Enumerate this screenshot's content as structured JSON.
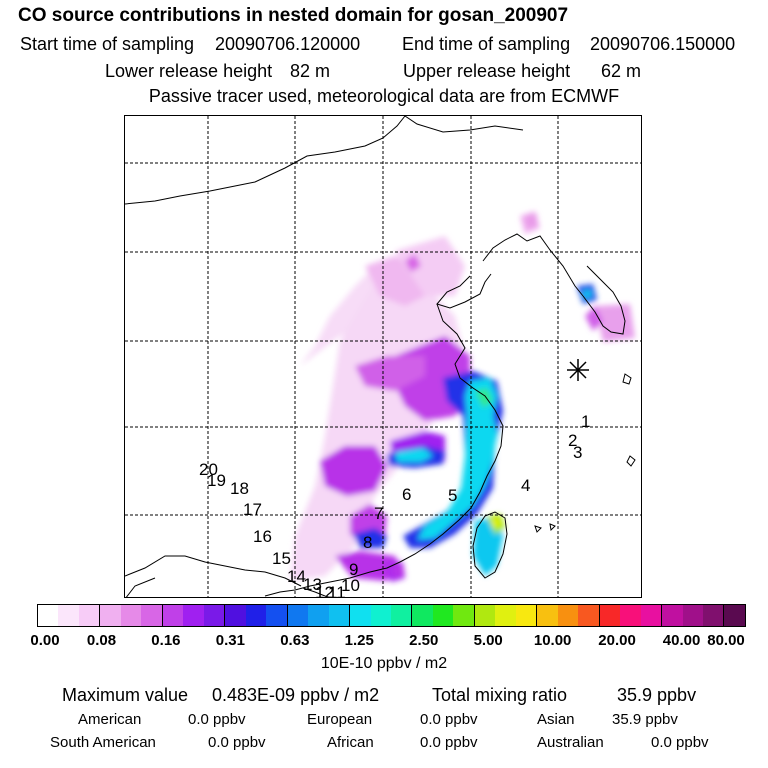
{
  "header": {
    "title": "CO  source contributions in nested domain for gosan_200907",
    "start_label": "Start time of sampling",
    "start_value": "20090706.120000",
    "end_label": "End time of sampling",
    "end_value": "20090706.150000",
    "lower_label": "Lower release height",
    "lower_value": "82 m",
    "upper_label": "Upper release height",
    "upper_value": "62 m",
    "tracer_note": "Passive tracer used, meteorological data are from ECMWF"
  },
  "map": {
    "markers": [
      "1",
      "2",
      "3",
      "4",
      "5",
      "6",
      "7",
      "8",
      "9",
      "10",
      "11",
      "12",
      "13",
      "14",
      "15",
      "16",
      "17",
      "18",
      "19",
      "20"
    ],
    "colors": {
      "coast": "#000000",
      "grid": "#000000",
      "lowest": "#f7dcf7"
    }
  },
  "legend": {
    "colors": [
      "#ffffff",
      "#fbe6fb",
      "#f7ccf7",
      "#f0b0f0",
      "#e68ae8",
      "#d866e6",
      "#c040e8",
      "#a020f0",
      "#7a1ae8",
      "#5010e0",
      "#2020e8",
      "#1450f0",
      "#1078f0",
      "#10a0f0",
      "#10c0f0",
      "#10e0f0",
      "#10f0d0",
      "#10f0a0",
      "#10e860",
      "#20e820",
      "#70e810",
      "#b0e810",
      "#e0f010",
      "#f8e810",
      "#f8c010",
      "#f89010",
      "#f85820",
      "#f82828",
      "#f8107a",
      "#e810a0",
      "#c010a0",
      "#a0108a",
      "#80106e",
      "#5a0a50"
    ],
    "labels": [
      "0.00",
      "0.08",
      "0.16",
      "0.31",
      "0.63",
      "1.25",
      "2.50",
      "5.00",
      "10.00",
      "20.00",
      "40.00",
      "80.00"
    ],
    "units": "10E-10 ppbv / m2"
  },
  "summary": {
    "max_label": "Maximum value",
    "max_value": "0.483E-09 ppbv / m2",
    "total_label": "Total mixing ratio",
    "total_value": "35.9 ppbv"
  },
  "contributions": [
    {
      "label": "American",
      "value": "0.0 ppbv"
    },
    {
      "label": "European",
      "value": "0.0 ppbv"
    },
    {
      "label": "Asian",
      "value": "35.9 ppbv"
    },
    {
      "label": "South American",
      "value": "0.0 ppbv"
    },
    {
      "label": "African",
      "value": "0.0 ppbv"
    },
    {
      "label": "Australian",
      "value": "0.0 ppbv"
    }
  ]
}
